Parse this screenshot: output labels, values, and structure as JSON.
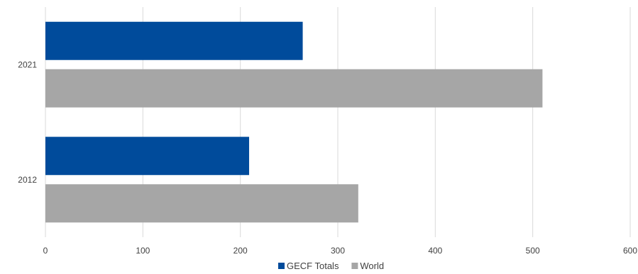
{
  "chart_data": {
    "type": "bar",
    "orientation": "horizontal",
    "title": "",
    "xlabel": "",
    "ylabel": "",
    "categories": [
      "2021",
      "2012"
    ],
    "series": [
      {
        "name": "GECF Totals",
        "color": "#004B9B",
        "values": [
          264,
          209
        ]
      },
      {
        "name": "World",
        "color": "#A6A6A6",
        "values": [
          510,
          321
        ]
      }
    ],
    "xlim": [
      0,
      600
    ],
    "xticks": [
      0,
      100,
      200,
      300,
      400,
      500,
      600
    ],
    "grid": true,
    "legend_position": "bottom"
  }
}
